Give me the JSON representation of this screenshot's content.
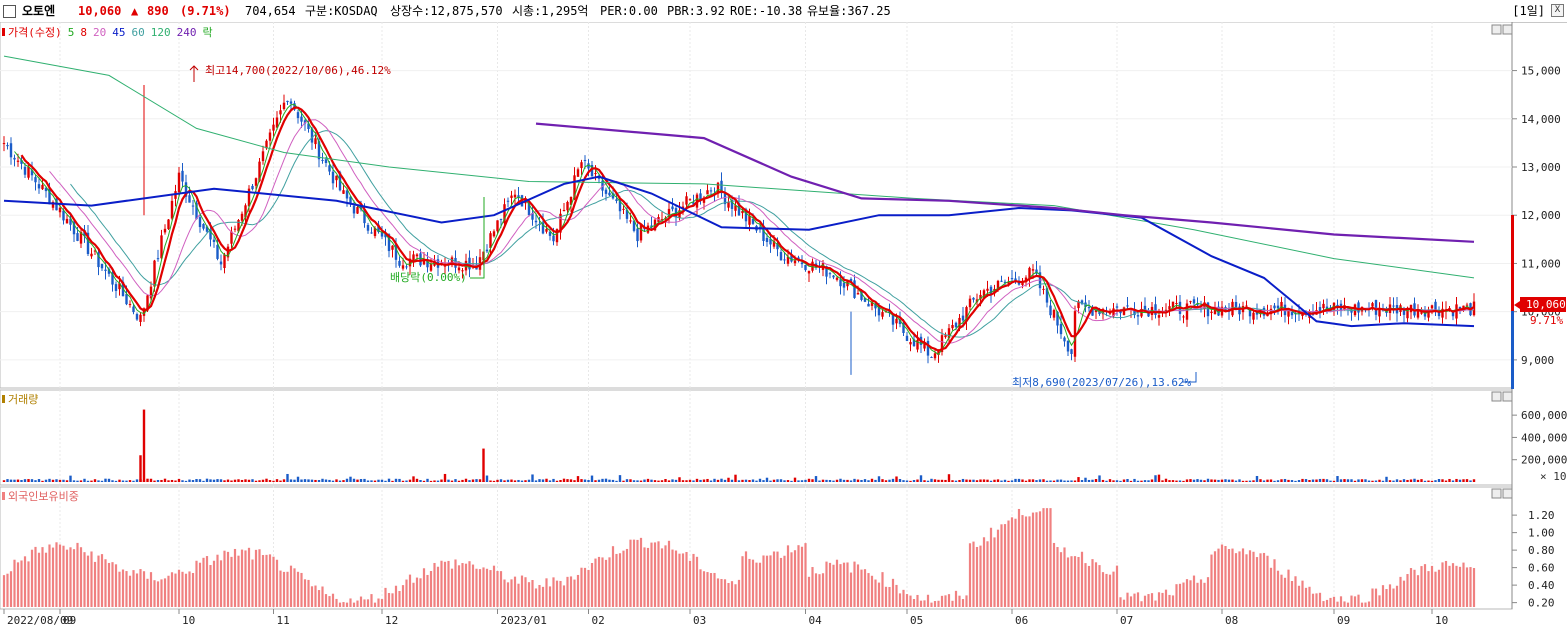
{
  "header": {
    "stock_name": "오토엔",
    "price": "10,060",
    "change_arrow": "▲",
    "change": "890",
    "change_pct": "(9.71%)",
    "volume": "704,654",
    "market": "구분:KOSDAQ",
    "listed_shares": "상장수:12,875,570",
    "market_cap": "시총:1,295억",
    "per": "PER:0.00",
    "pbr": "PBR:3.92",
    "roe": "ROE:-10.38",
    "reserve_ratio": "유보율:367.25",
    "period": "[1일]",
    "close_button": "X"
  },
  "colors": {
    "up": "#e00000",
    "down": "#1a5cc8",
    "ma5": "#22aa22",
    "ma8": "#e00000",
    "ma20": "#d060c0",
    "ma45": "#0a1ec8",
    "ma60": "#40a0a0",
    "ma120": "#30b070",
    "ma240": "#7020b0",
    "volume_label": "#b08000",
    "foreign_bar": "#f08080"
  },
  "chart_data": [
    {
      "type": "candlestick",
      "panel": "price",
      "legend": [
        "가격(수정)",
        "5",
        "8",
        "20",
        "45",
        "60",
        "120",
        "240",
        "락"
      ],
      "y_axis_ticks": [
        "15,000",
        "14,000",
        "13,000",
        "12,000",
        "11,000",
        "10,000",
        "9,000"
      ],
      "ylim": [
        8500,
        15800
      ],
      "current_price_label": "10,060",
      "current_change_label": "9.71%",
      "annotations": {
        "high": "최고14,700(2022/10/06),46.12%",
        "low": "최저8,690(2023/07/26),13.62%",
        "dividend": "배당락(0.00%)"
      },
      "key_points": [
        {
          "date": "2022/08/09",
          "close": 13500
        },
        {
          "date": "2022/09/01",
          "close": 12100
        },
        {
          "date": "2022/10/04",
          "close": 9850
        },
        {
          "date": "2022/10/06",
          "high": 14700
        },
        {
          "date": "2022/10/20",
          "close": 12800
        },
        {
          "date": "2022/11/07",
          "close": 11000
        },
        {
          "date": "2022/12/05",
          "close": 14500
        },
        {
          "date": "2022/12/27",
          "close": 12400
        },
        {
          "date": "2023/01/20",
          "close": 11100
        },
        {
          "date": "2023/02/20",
          "close": 11000
        },
        {
          "date": "2023/03/08",
          "close": 12500
        },
        {
          "date": "2023/03/24",
          "close": 11500
        },
        {
          "date": "2023/04/05",
          "close": 13100
        },
        {
          "date": "2023/04/28",
          "close": 11600
        },
        {
          "date": "2023/05/30",
          "close": 12600
        },
        {
          "date": "2023/06/27",
          "close": 11200
        },
        {
          "date": "2023/07/18",
          "close": 10800
        },
        {
          "date": "2023/07/26",
          "low": 8690
        },
        {
          "date": "2023/08/28",
          "close": 9100
        },
        {
          "date": "2023/09/18",
          "close": 10400
        },
        {
          "date": "2023/10/09",
          "close": 10800
        },
        {
          "date": "2023/10/25",
          "close": 9170
        },
        {
          "date": "2023/10/26",
          "close": 10060
        }
      ],
      "moving_averages": {
        "ma45_path": [
          [
            0,
            12300
          ],
          [
            25,
            12200
          ],
          [
            60,
            12550
          ],
          [
            95,
            12300
          ],
          [
            125,
            11850
          ],
          [
            140,
            12000
          ],
          [
            160,
            12650
          ],
          [
            170,
            12800
          ],
          [
            185,
            12450
          ],
          [
            205,
            11750
          ],
          [
            230,
            11700
          ],
          [
            250,
            12000
          ],
          [
            270,
            12000
          ],
          [
            290,
            12150
          ],
          [
            305,
            12100
          ],
          [
            325,
            11950
          ],
          [
            345,
            11150
          ],
          [
            360,
            10700
          ],
          [
            375,
            9800
          ],
          [
            385,
            9700
          ],
          [
            400,
            9760
          ],
          [
            420,
            9700
          ]
        ],
        "ma240_path": [
          [
            152,
            13900
          ],
          [
            200,
            13600
          ],
          [
            225,
            12800
          ],
          [
            245,
            12350
          ],
          [
            270,
            12300
          ],
          [
            300,
            12150
          ],
          [
            320,
            12000
          ],
          [
            345,
            11850
          ],
          [
            380,
            11600
          ],
          [
            420,
            11450
          ]
        ]
      }
    },
    {
      "type": "bar",
      "panel": "volume",
      "label": "거래량",
      "y_axis_ticks": [
        "600,000",
        "400,000",
        "200,000"
      ],
      "multiplier": "× 10",
      "ylim": [
        0,
        700000
      ],
      "notable_values": [
        {
          "date": "2022/10/06",
          "value": 650000
        },
        {
          "date": "2022/10/04",
          "value": 240000
        },
        {
          "date": "2023/02/24",
          "value": 300000
        }
      ]
    },
    {
      "type": "bar",
      "panel": "foreign_ownership",
      "label": "외국인보유비중",
      "y_axis_ticks": [
        "1.20",
        "1.00",
        "0.80",
        "0.60",
        "0.40",
        "0.20"
      ],
      "ylim": [
        0.15,
        1.35
      ]
    }
  ],
  "x_axis": {
    "labels": [
      "2022/08/09",
      "09",
      "10",
      "11",
      "12",
      "2023/01",
      "02",
      "03",
      "04",
      "05",
      "06",
      "07",
      "08",
      "09",
      "10"
    ]
  }
}
